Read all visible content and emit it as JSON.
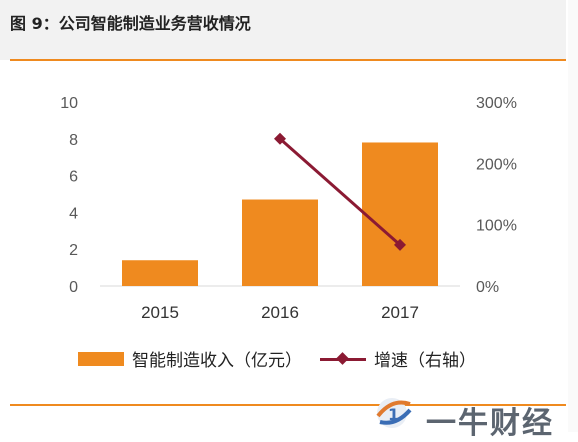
{
  "header": {
    "title": "图 9：公司智能制造业务营收情况"
  },
  "colors": {
    "bar": "#ef8a1f",
    "line": "#8b1a33",
    "accent_rule": "#ef8a1f",
    "axis_text": "#595959"
  },
  "chart_data": {
    "type": "bar",
    "categories": [
      "2015",
      "2016",
      "2017"
    ],
    "series": [
      {
        "name": "智能制造收入（亿元）",
        "type": "bar",
        "axis": "left",
        "values": [
          1.4,
          4.7,
          7.8
        ]
      },
      {
        "name": "增速（右轴）",
        "type": "line",
        "axis": "right",
        "values": [
          null,
          240,
          67
        ]
      }
    ],
    "yaxis_left": {
      "lim": [
        0,
        10
      ],
      "ticks": [
        "0",
        "2",
        "4",
        "6",
        "8",
        "10"
      ]
    },
    "yaxis_right": {
      "lim": [
        0,
        300
      ],
      "ticks": [
        "0%",
        "100%",
        "200%",
        "300%"
      ]
    },
    "grid": false,
    "legend_position": "bottom"
  },
  "legend": {
    "bar_label": "智能制造收入（亿元）",
    "line_label": "增速（右轴）"
  },
  "watermark": {
    "text": "一牛财经"
  }
}
